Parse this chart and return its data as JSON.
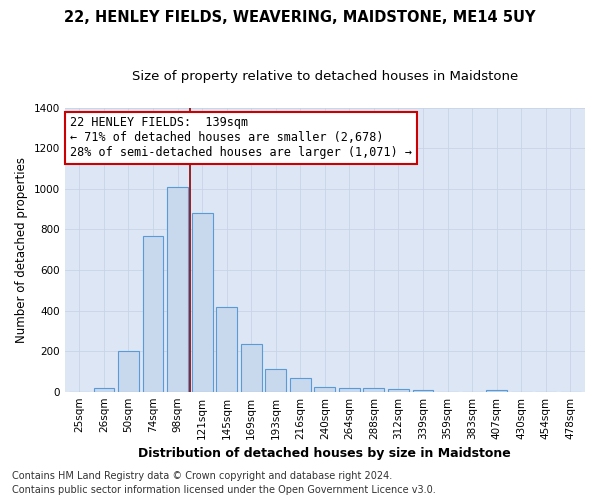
{
  "title": "22, HENLEY FIELDS, WEAVERING, MAIDSTONE, ME14 5UY",
  "subtitle": "Size of property relative to detached houses in Maidstone",
  "xlabel": "Distribution of detached houses by size in Maidstone",
  "ylabel": "Number of detached properties",
  "categories": [
    "25sqm",
    "26sqm",
    "50sqm",
    "74sqm",
    "98sqm",
    "121sqm",
    "145sqm",
    "169sqm",
    "193sqm",
    "216sqm",
    "240sqm",
    "264sqm",
    "288sqm",
    "312sqm",
    "339sqm",
    "359sqm",
    "383sqm",
    "407sqm",
    "430sqm",
    "454sqm",
    "478sqm"
  ],
  "values": [
    0,
    20,
    200,
    770,
    1010,
    880,
    420,
    235,
    110,
    65,
    25,
    20,
    20,
    15,
    10,
    0,
    0,
    10,
    0,
    0,
    0
  ],
  "bar_color": "#c8d9ee",
  "bar_edge_color": "#5b9bd5",
  "grid_color": "#c8d4e6",
  "background_color": "#ffffff",
  "plot_bg_color": "#dce6f5",
  "vline_color": "#8b0000",
  "vline_x": 4.5,
  "annotation_text": "22 HENLEY FIELDS:  139sqm\n← 71% of detached houses are smaller (2,678)\n28% of semi-detached houses are larger (1,071) →",
  "annotation_box_facecolor": "#ffffff",
  "annotation_box_edgecolor": "#cc0000",
  "footer_line1": "Contains HM Land Registry data © Crown copyright and database right 2024.",
  "footer_line2": "Contains public sector information licensed under the Open Government Licence v3.0.",
  "title_fontsize": 10.5,
  "subtitle_fontsize": 9.5,
  "ylabel_fontsize": 8.5,
  "xlabel_fontsize": 9,
  "tick_fontsize": 7.5,
  "annotation_fontsize": 8.5,
  "footer_fontsize": 7,
  "ylim": [
    0,
    1400
  ],
  "yticks": [
    0,
    200,
    400,
    600,
    800,
    1000,
    1200,
    1400
  ]
}
